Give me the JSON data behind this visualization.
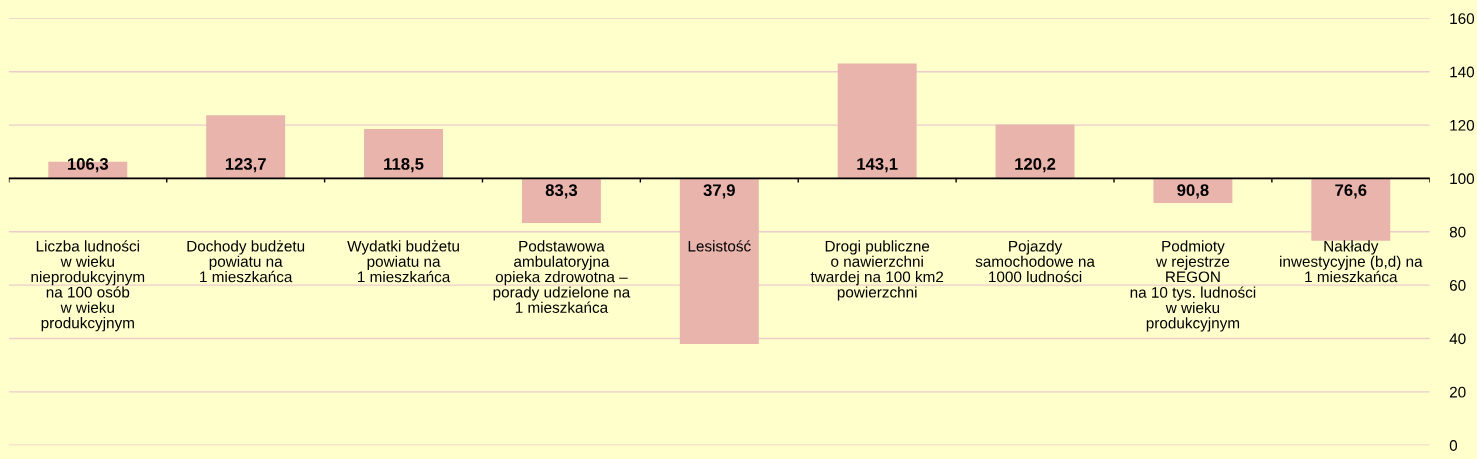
{
  "chart_data": {
    "type": "bar",
    "categories": [
      "Liczba ludności\nw wieku\nnieprodukcyjnym\nna 100 osób\nw wieku\nprodukcyjnym",
      "Dochody budżetu\npowiatu na\n1 mieszkańca",
      "Wydatki budżetu\npowiatu na\n1 mieszkańca",
      "Podstawowa\nambulatoryjna\nopieka zdrowotna –\nporady udzielone na\n1 mieszkańca",
      "Lesistość",
      "Drogi publiczne\no nawierzchni\ntwardej na 100 km2\npowierzchni",
      "Pojazdy\nsamochodowe na\n1000 ludności",
      "Podmioty\nw rejestrze\nREGON\nna 10 tys. ludności\nw wieku\nprodukcyjnym",
      "Nakłady\ninwestycyjne (b,d) na\n1 mieszkańca"
    ],
    "base": [
      100,
      100,
      100,
      100,
      100,
      100,
      100,
      100,
      100
    ],
    "values": [
      6.3,
      23.7,
      18.5,
      -16.7,
      -62.1,
      43.1,
      20.2,
      -9.2,
      -23.4
    ],
    "value_labels": [
      "106,3",
      "123,7",
      "118,5",
      "83,3",
      "37,9",
      "143,1",
      "120,2",
      "90,8",
      "76,6"
    ],
    "color": "#e8b4ac",
    "ylim": [
      0,
      160
    ],
    "yticks": [
      0,
      20,
      40,
      60,
      80,
      100,
      120,
      140,
      160
    ],
    "grid": "y",
    "ref_lines": [
      {
        "axis": "y",
        "value": 100,
        "color": "#000000"
      }
    ]
  }
}
